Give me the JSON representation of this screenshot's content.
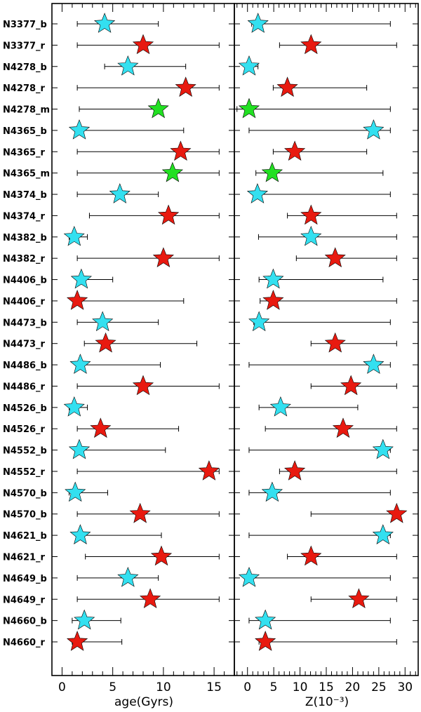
{
  "chart_data": [
    {
      "type": "scatter",
      "title": "",
      "xlabel": "age(Gyrs)",
      "ylabel": "",
      "xlim": [
        -1,
        17
      ],
      "xticks": [
        0,
        5,
        10,
        15
      ],
      "grid": false,
      "error_bars": "horizontal",
      "categories": [
        "N3377_b",
        "N3377_r",
        "N4278_b",
        "N4278_r",
        "N4278_m",
        "N4365_b",
        "N4365_r",
        "N4365_m",
        "N4374_b",
        "N4374_r",
        "N4382_b",
        "N4382_r",
        "N4406_b",
        "N4406_r",
        "N4473_b",
        "N4473_r",
        "N4486_b",
        "N4486_r",
        "N4526_b",
        "N4526_r",
        "N4552_b",
        "N4552_r",
        "N4570_b",
        "N4570_b",
        "N4621_b",
        "N4621_r",
        "N4649_b",
        "N4649_r",
        "N4660_b",
        "N4660_r"
      ],
      "points": [
        {
          "y": 4.2,
          "lo": 1.5,
          "hi": 9.5,
          "color": "cyan"
        },
        {
          "y": 8.0,
          "lo": 1.5,
          "hi": 15.5,
          "color": "red"
        },
        {
          "y": 6.5,
          "lo": 4.2,
          "hi": 12.2,
          "color": "cyan"
        },
        {
          "y": 12.2,
          "lo": 1.5,
          "hi": 15.5,
          "color": "red"
        },
        {
          "y": 9.5,
          "lo": 1.7,
          "hi": 9.8,
          "color": "green"
        },
        {
          "y": 1.7,
          "lo": 1.5,
          "hi": 12.0,
          "color": "cyan"
        },
        {
          "y": 11.7,
          "lo": 1.5,
          "hi": 15.5,
          "color": "red"
        },
        {
          "y": 10.9,
          "lo": 1.5,
          "hi": 15.5,
          "color": "green"
        },
        {
          "y": 5.7,
          "lo": 1.5,
          "hi": 9.5,
          "color": "cyan"
        },
        {
          "y": 10.5,
          "lo": 2.7,
          "hi": 15.5,
          "color": "red"
        },
        {
          "y": 1.2,
          "lo": 0.7,
          "hi": 2.5,
          "color": "cyan"
        },
        {
          "y": 10.0,
          "lo": 1.5,
          "hi": 15.5,
          "color": "red"
        },
        {
          "y": 1.9,
          "lo": 1.5,
          "hi": 5.0,
          "color": "cyan"
        },
        {
          "y": 1.5,
          "lo": 1.5,
          "hi": 12.0,
          "color": "red"
        },
        {
          "y": 4.0,
          "lo": 1.5,
          "hi": 9.5,
          "color": "cyan"
        },
        {
          "y": 4.3,
          "lo": 2.2,
          "hi": 13.3,
          "color": "red"
        },
        {
          "y": 1.8,
          "lo": 1.5,
          "hi": 9.7,
          "color": "cyan"
        },
        {
          "y": 8.0,
          "lo": 1.5,
          "hi": 15.5,
          "color": "red"
        },
        {
          "y": 1.2,
          "lo": 0.7,
          "hi": 2.5,
          "color": "cyan"
        },
        {
          "y": 3.8,
          "lo": 1.5,
          "hi": 11.5,
          "color": "red"
        },
        {
          "y": 1.7,
          "lo": 1.5,
          "hi": 10.2,
          "color": "cyan"
        },
        {
          "y": 14.5,
          "lo": 1.5,
          "hi": 15.5,
          "color": "red"
        },
        {
          "y": 1.3,
          "lo": 0.7,
          "hi": 4.5,
          "color": "cyan"
        },
        {
          "y": 7.7,
          "lo": 1.5,
          "hi": 15.5,
          "color": "red"
        },
        {
          "y": 1.8,
          "lo": 1.5,
          "hi": 9.8,
          "color": "cyan"
        },
        {
          "y": 9.8,
          "lo": 2.3,
          "hi": 15.5,
          "color": "red"
        },
        {
          "y": 6.5,
          "lo": 1.5,
          "hi": 9.5,
          "color": "cyan"
        },
        {
          "y": 8.7,
          "lo": 1.5,
          "hi": 15.5,
          "color": "red"
        },
        {
          "y": 2.2,
          "lo": 1.0,
          "hi": 5.8,
          "color": "cyan"
        },
        {
          "y": 1.5,
          "lo": 1.0,
          "hi": 5.9,
          "color": "red"
        }
      ]
    },
    {
      "type": "scatter",
      "title": "",
      "xlabel": "Z(10⁻³)",
      "ylabel": "",
      "xlim": [
        -2.5,
        32.5
      ],
      "xticks": [
        0,
        5,
        10,
        15,
        20,
        25,
        30
      ],
      "grid": false,
      "error_bars": "horizontal",
      "categories": [
        "N3377_b",
        "N3377_r",
        "N4278_b",
        "N4278_r",
        "N4278_m",
        "N4365_b",
        "N4365_r",
        "N4365_m",
        "N4374_b",
        "N4374_r",
        "N4382_b",
        "N4382_r",
        "N4406_b",
        "N4406_r",
        "N4473_b",
        "N4473_r",
        "N4486_b",
        "N4486_r",
        "N4526_b",
        "N4526_r",
        "N4552_b",
        "N4552_r",
        "N4570_b",
        "N4570_b",
        "N4621_b",
        "N4621_r",
        "N4649_b",
        "N4649_r",
        "N4660_b",
        "N4660_r"
      ],
      "points": [
        {
          "y": 2.0,
          "lo": 0.8,
          "hi": 27.2,
          "color": "cyan"
        },
        {
          "y": 12.1,
          "lo": 6.1,
          "hi": 28.4,
          "color": "red"
        },
        {
          "y": 0.3,
          "lo": 0.0,
          "hi": 2.0,
          "color": "cyan"
        },
        {
          "y": 7.6,
          "lo": 4.9,
          "hi": 22.7,
          "color": "red"
        },
        {
          "y": 0.3,
          "lo": -2.0,
          "hi": 27.2,
          "color": "green"
        },
        {
          "y": 24.0,
          "lo": 0.3,
          "hi": 27.2,
          "color": "cyan"
        },
        {
          "y": 9.0,
          "lo": 4.9,
          "hi": 22.7,
          "color": "red"
        },
        {
          "y": 4.7,
          "lo": 1.6,
          "hi": 25.8,
          "color": "green"
        },
        {
          "y": 1.9,
          "lo": 1.2,
          "hi": 27.2,
          "color": "cyan"
        },
        {
          "y": 12.1,
          "lo": 7.6,
          "hi": 28.4,
          "color": "red"
        },
        {
          "y": 12.1,
          "lo": 2.1,
          "hi": 28.4,
          "color": "cyan"
        },
        {
          "y": 16.7,
          "lo": 9.3,
          "hi": 28.4,
          "color": "red"
        },
        {
          "y": 4.9,
          "lo": 2.2,
          "hi": 25.8,
          "color": "cyan"
        },
        {
          "y": 4.9,
          "lo": 2.4,
          "hi": 28.4,
          "color": "red"
        },
        {
          "y": 2.2,
          "lo": 1.2,
          "hi": 27.2,
          "color": "cyan"
        },
        {
          "y": 16.7,
          "lo": 12.1,
          "hi": 28.4,
          "color": "red"
        },
        {
          "y": 24.0,
          "lo": 0.3,
          "hi": 27.2,
          "color": "cyan"
        },
        {
          "y": 19.7,
          "lo": 12.1,
          "hi": 28.4,
          "color": "red"
        },
        {
          "y": 6.3,
          "lo": 2.2,
          "hi": 21.0,
          "color": "cyan"
        },
        {
          "y": 18.2,
          "lo": 3.4,
          "hi": 28.4,
          "color": "red"
        },
        {
          "y": 25.8,
          "lo": 0.3,
          "hi": 27.2,
          "color": "cyan"
        },
        {
          "y": 9.0,
          "lo": 6.1,
          "hi": 28.4,
          "color": "red"
        },
        {
          "y": 4.7,
          "lo": 0.3,
          "hi": 27.2,
          "color": "cyan"
        },
        {
          "y": 28.4,
          "lo": 12.1,
          "hi": 28.4,
          "color": "red"
        },
        {
          "y": 25.8,
          "lo": 0.3,
          "hi": 27.2,
          "color": "cyan"
        },
        {
          "y": 12.1,
          "lo": 7.6,
          "hi": 28.4,
          "color": "red"
        },
        {
          "y": 0.3,
          "lo": -0.5,
          "hi": 27.2,
          "color": "cyan"
        },
        {
          "y": 21.2,
          "lo": 12.1,
          "hi": 28.4,
          "color": "red"
        },
        {
          "y": 3.4,
          "lo": 0.3,
          "hi": 27.2,
          "color": "cyan"
        },
        {
          "y": 3.4,
          "lo": 2.2,
          "hi": 28.4,
          "color": "red"
        }
      ]
    }
  ],
  "colors": {
    "cyan": "#33e0f0",
    "red": "#e81a10",
    "green": "#22e022",
    "star_outline": "#000000",
    "axis": "#000000"
  }
}
